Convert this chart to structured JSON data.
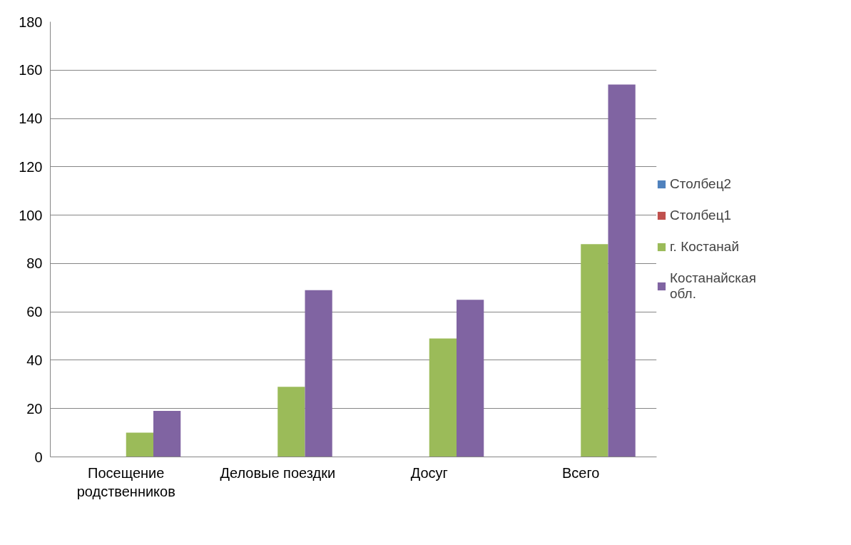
{
  "chart_data": {
    "type": "bar",
    "categories": [
      "Посещение родственников",
      "Деловые поездки",
      "Досуг",
      "Всего"
    ],
    "series": [
      {
        "name": "Столбец2",
        "color": "#4f81bd",
        "values": [
          null,
          null,
          null,
          null
        ]
      },
      {
        "name": "Столбец1",
        "color": "#c0504d",
        "values": [
          null,
          null,
          null,
          null
        ]
      },
      {
        "name": "г. Костанай",
        "color": "#9bbb59",
        "values": [
          10,
          29,
          49,
          88
        ]
      },
      {
        "name": "Костанайская обл.",
        "color": "#8064a2",
        "values": [
          19,
          69,
          65,
          154
        ]
      }
    ],
    "ylim": [
      0,
      180
    ],
    "yticks": [
      0,
      20,
      40,
      60,
      80,
      100,
      120,
      140,
      160,
      180
    ],
    "grid": "y",
    "legend": "right"
  }
}
